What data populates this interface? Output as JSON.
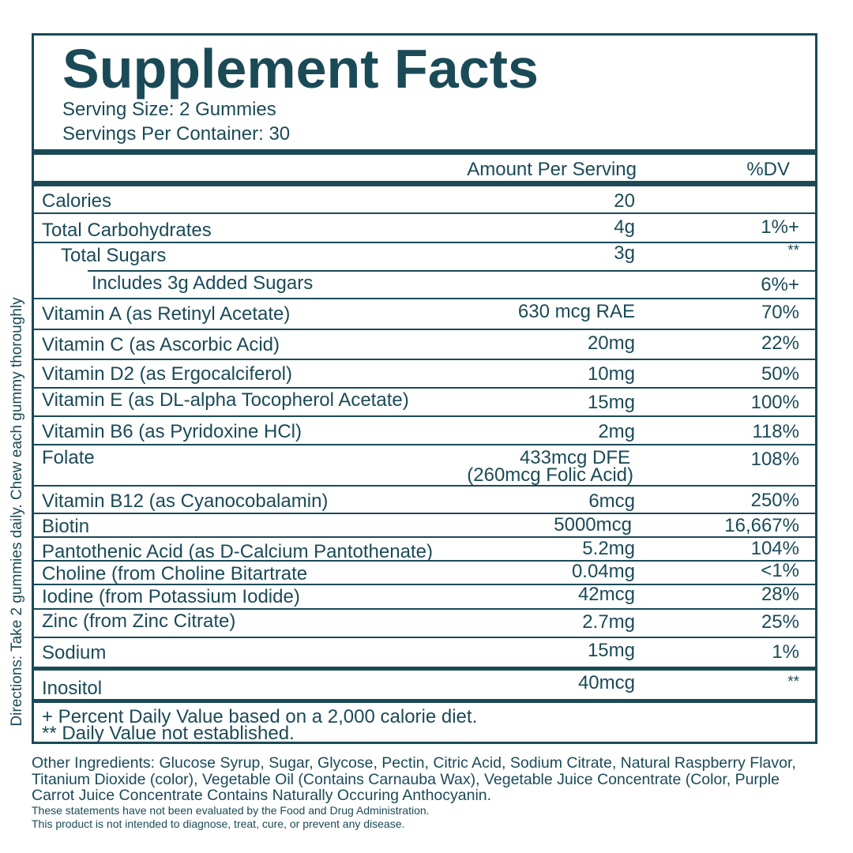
{
  "directions": "Directions: Take 2 gummies daily. Chew each gummy thoroughly",
  "title": "Supplement Facts",
  "serving_size": "Serving Size: 2 Gummies",
  "servings_per_container": "Servings Per Container: 30",
  "header": {
    "amount": "Amount Per Serving",
    "dv": "%DV"
  },
  "rows": [
    {
      "name": "Calories",
      "amount": "20",
      "dv": ""
    },
    {
      "name": "Total Carbohydrates",
      "amount": "4g",
      "dv": "1%+"
    },
    {
      "name": "Total Sugars",
      "amount": "3g",
      "dv": "**"
    },
    {
      "name": "Includes 3g Added Sugars",
      "amount": "",
      "dv": "6%+"
    },
    {
      "name": "Vitamin A (as Retinyl Acetate)",
      "amount": "630 mcg RAE",
      "dv": "70%"
    },
    {
      "name": "Vitamin C (as Ascorbic Acid)",
      "amount": "20mg",
      "dv": "22%"
    },
    {
      "name": "Vitamin D2 (as Ergocalciferol)",
      "amount": "10mg",
      "dv": "50%"
    },
    {
      "name": "Vitamin E (as DL-alpha Tocopherol Acetate)",
      "amount": "15mg",
      "dv": "100%"
    },
    {
      "name": "Vitamin B6 (as Pyridoxine HCl)",
      "amount": "2mg",
      "dv": "118%"
    },
    {
      "name": "Folate",
      "amount": "433mcg DFE",
      "amount2": "(260mcg Folic Acid)",
      "dv": "108%"
    },
    {
      "name": "Vitamin B12 (as Cyanocobalamin)",
      "amount": "6mcg",
      "dv": "250%"
    },
    {
      "name": "Biotin",
      "amount": "5000mcg",
      "dv": "16,667%"
    },
    {
      "name": "Pantothenic Acid (as D-Calcium Pantothenate)",
      "amount": "5.2mg",
      "dv": "104%"
    },
    {
      "name": "Choline (from Choline Bitartrate",
      "amount": "0.04mg",
      "dv": "<1%"
    },
    {
      "name": "Iodine (from Potassium Iodide)",
      "amount": "42mcg",
      "dv": "28%"
    },
    {
      "name": "Zinc (from Zinc Citrate)",
      "amount": "2.7mg",
      "dv": "25%"
    },
    {
      "name": "Sodium",
      "amount": "15mg",
      "dv": "1%"
    },
    {
      "name": "Inositol",
      "amount": "40mcg",
      "dv": "**"
    }
  ],
  "footnotes": [
    "+ Percent Daily Value based on a 2,000 calorie diet.",
    "** Daily Value not established."
  ],
  "other_ingredients": "Other Ingredients: Glucose Syrup, Sugar, Glycose, Pectin, Citric Acid, Sodium Citrate, Natural Raspberry Flavor, Titanium Dioxide (color), Vegetable Oil (Contains Carnauba Wax), Vegetable Juice Concentrate (Color, Purple Carrot Juice Concentrate Contains Naturally Occuring Anthocyanin.",
  "fda_statements": [
    "These statements have not been evaluated by the Food and Drug Administration.",
    "This product is not intended to diagnose, treat, cure, or prevent any disease."
  ],
  "colors": {
    "ink": "#1b4a57",
    "background": "#ffffff"
  }
}
